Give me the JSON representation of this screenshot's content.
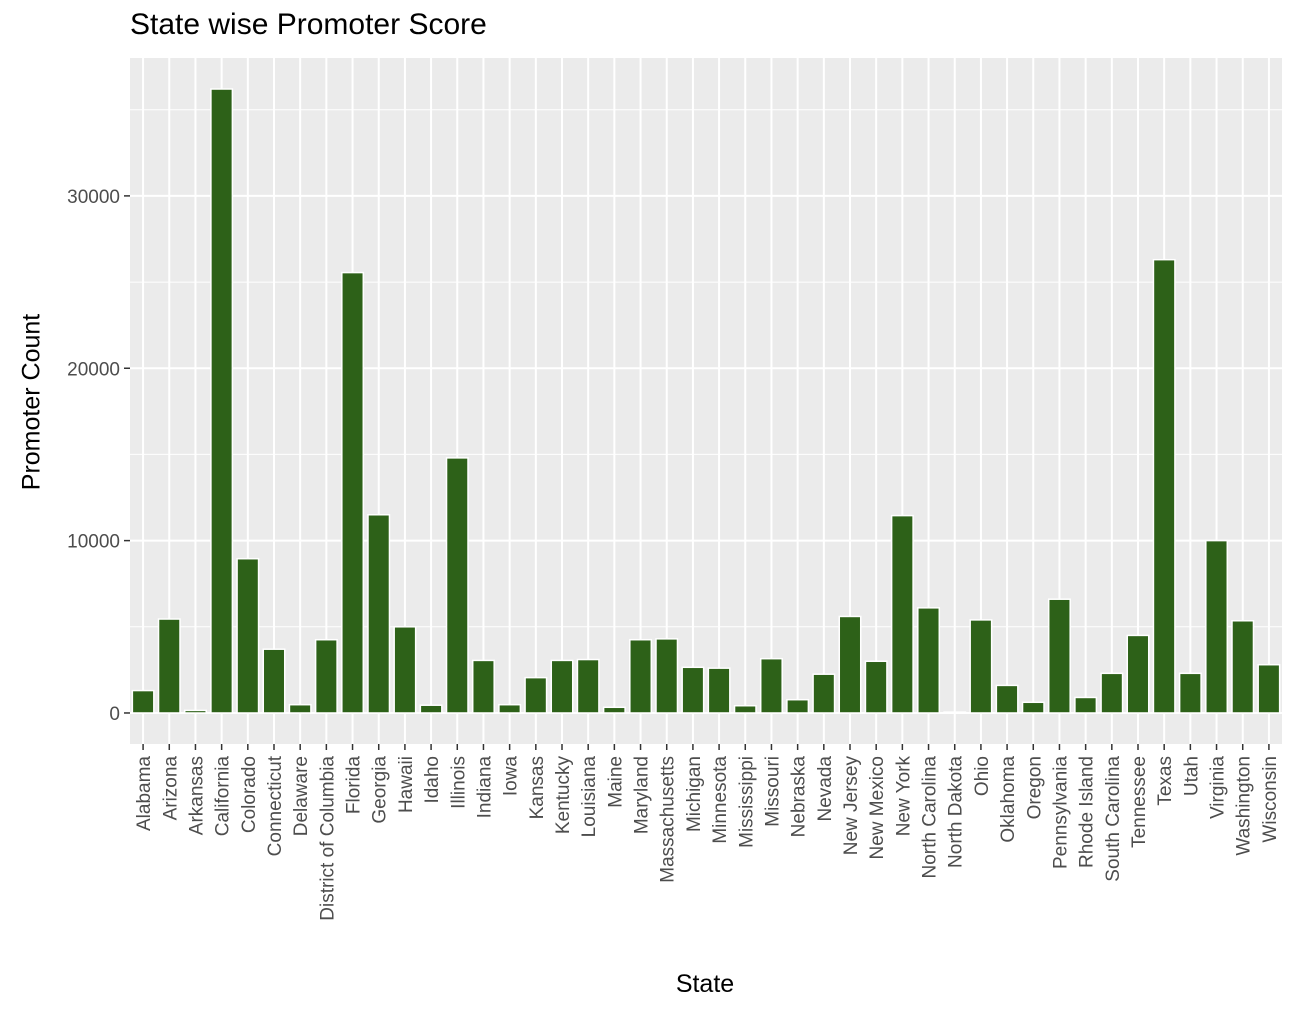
{
  "chart_data": {
    "type": "bar",
    "title": "State wise Promoter Score",
    "xlabel": "State",
    "ylabel": "Promoter Count",
    "categories": [
      "Alabama",
      "Arizona",
      "Arkansas",
      "California",
      "Colorado",
      "Connecticut",
      "Delaware",
      "District of Columbia",
      "Florida",
      "Georgia",
      "Hawaii",
      "Idaho",
      "Illinois",
      "Indiana",
      "Iowa",
      "Kansas",
      "Kentucky",
      "Louisiana",
      "Maine",
      "Maryland",
      "Massachusetts",
      "Michigan",
      "Minnesota",
      "Mississippi",
      "Missouri",
      "Nebraska",
      "Nevada",
      "New Jersey",
      "New Mexico",
      "New York",
      "North Carolina",
      "North Dakota",
      "Ohio",
      "Oklahoma",
      "Oregon",
      "Pennsylvania",
      "Rhode Island",
      "South Carolina",
      "Tennessee",
      "Texas",
      "Utah",
      "Virginia",
      "Washington",
      "Wisconsin"
    ],
    "values": [
      1300,
      5450,
      150,
      36200,
      8950,
      3700,
      480,
      4250,
      25550,
      11500,
      5000,
      450,
      14800,
      3050,
      480,
      2050,
      3050,
      3100,
      330,
      4250,
      4300,
      2650,
      2600,
      420,
      3150,
      770,
      2250,
      5600,
      3000,
      11450,
      6100,
      50,
      5400,
      1600,
      620,
      6600,
      900,
      2300,
      4500,
      26300,
      2300,
      10000,
      5350,
      2800
    ],
    "ylim": [
      -1800,
      38000
    ],
    "yticks": [
      0,
      10000,
      20000,
      30000
    ],
    "ytick_labels": [
      "0",
      "10000",
      "20000",
      "30000"
    ],
    "grid": true,
    "colors": {
      "bar": "#2d6118",
      "bar_outline": "#ffffff",
      "panel": "#ebebeb",
      "gridline": "#ffffff",
      "text": "#4d4d4d"
    }
  }
}
